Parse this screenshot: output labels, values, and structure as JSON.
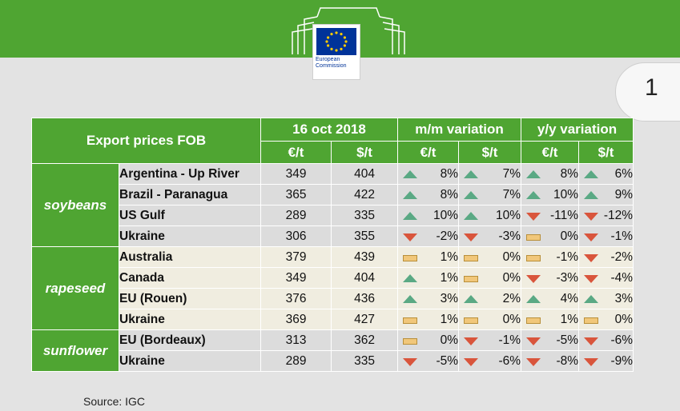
{
  "header": {
    "logo_text": [
      "European",
      "Commission"
    ],
    "page_number": "1"
  },
  "colors": {
    "brand_green": "#4fa532",
    "up": "#5aa984",
    "down": "#d9553c",
    "flat": "#f1c77a"
  },
  "table": {
    "title": "Export prices FOB",
    "date": "16 oct 2018",
    "mm": "m/m variation",
    "yy": "y/y variation",
    "eur": "€/t",
    "usd": "$/t",
    "groups": [
      {
        "name": "soybeans",
        "rows": [
          {
            "loc": "Argentina - Up River",
            "eur": "349",
            "usd": "404",
            "mm_eur": {
              "v": "8%",
              "t": "up"
            },
            "mm_usd": {
              "v": "7%",
              "t": "up"
            },
            "yy_eur": {
              "v": "8%",
              "t": "up"
            },
            "yy_usd": {
              "v": "6%",
              "t": "up"
            }
          },
          {
            "loc": "Brazil - Paranagua",
            "eur": "365",
            "usd": "422",
            "mm_eur": {
              "v": "8%",
              "t": "up"
            },
            "mm_usd": {
              "v": "7%",
              "t": "up"
            },
            "yy_eur": {
              "v": "10%",
              "t": "up"
            },
            "yy_usd": {
              "v": "9%",
              "t": "up"
            }
          },
          {
            "loc": "US Gulf",
            "eur": "289",
            "usd": "335",
            "mm_eur": {
              "v": "10%",
              "t": "up"
            },
            "mm_usd": {
              "v": "10%",
              "t": "up"
            },
            "yy_eur": {
              "v": "-11%",
              "t": "down"
            },
            "yy_usd": {
              "v": "-12%",
              "t": "down"
            }
          },
          {
            "loc": "Ukraine",
            "eur": "306",
            "usd": "355",
            "mm_eur": {
              "v": "-2%",
              "t": "down"
            },
            "mm_usd": {
              "v": "-3%",
              "t": "down"
            },
            "yy_eur": {
              "v": "0%",
              "t": "flat"
            },
            "yy_usd": {
              "v": "-1%",
              "t": "down"
            }
          }
        ]
      },
      {
        "name": "rapeseed",
        "rows": [
          {
            "loc": "Australia",
            "eur": "379",
            "usd": "439",
            "mm_eur": {
              "v": "1%",
              "t": "flat"
            },
            "mm_usd": {
              "v": "0%",
              "t": "flat"
            },
            "yy_eur": {
              "v": "-1%",
              "t": "flat"
            },
            "yy_usd": {
              "v": "-2%",
              "t": "down"
            }
          },
          {
            "loc": "Canada",
            "eur": "349",
            "usd": "404",
            "mm_eur": {
              "v": "1%",
              "t": "up"
            },
            "mm_usd": {
              "v": "0%",
              "t": "flat"
            },
            "yy_eur": {
              "v": "-3%",
              "t": "down"
            },
            "yy_usd": {
              "v": "-4%",
              "t": "down"
            }
          },
          {
            "loc": "EU (Rouen)",
            "eur": "376",
            "usd": "436",
            "mm_eur": {
              "v": "3%",
              "t": "up"
            },
            "mm_usd": {
              "v": "2%",
              "t": "up"
            },
            "yy_eur": {
              "v": "4%",
              "t": "up"
            },
            "yy_usd": {
              "v": "3%",
              "t": "up"
            }
          },
          {
            "loc": "Ukraine",
            "eur": "369",
            "usd": "427",
            "mm_eur": {
              "v": "1%",
              "t": "flat"
            },
            "mm_usd": {
              "v": "0%",
              "t": "flat"
            },
            "yy_eur": {
              "v": "1%",
              "t": "flat"
            },
            "yy_usd": {
              "v": "0%",
              "t": "flat"
            }
          }
        ]
      },
      {
        "name": "sunflower",
        "rows": [
          {
            "loc": "EU (Bordeaux)",
            "eur": "313",
            "usd": "362",
            "mm_eur": {
              "v": "0%",
              "t": "flat"
            },
            "mm_usd": {
              "v": "-1%",
              "t": "down"
            },
            "yy_eur": {
              "v": "-5%",
              "t": "down"
            },
            "yy_usd": {
              "v": "-6%",
              "t": "down"
            }
          },
          {
            "loc": "Ukraine",
            "eur": "289",
            "usd": "335",
            "mm_eur": {
              "v": "-5%",
              "t": "down"
            },
            "mm_usd": {
              "v": "-6%",
              "t": "down"
            },
            "yy_eur": {
              "v": "-8%",
              "t": "down"
            },
            "yy_usd": {
              "v": "-9%",
              "t": "down"
            }
          }
        ]
      }
    ]
  },
  "source": "Source:  IGC"
}
